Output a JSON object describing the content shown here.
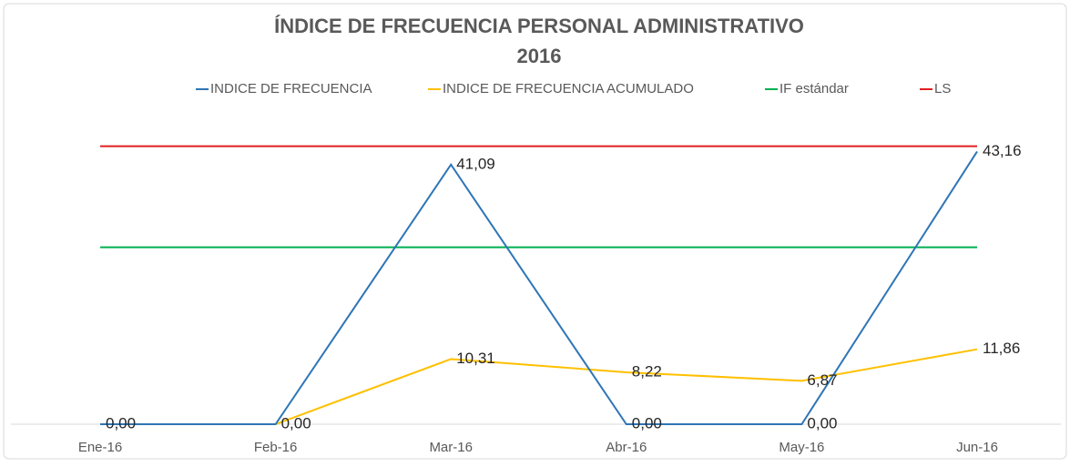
{
  "chart_data": {
    "type": "line",
    "title": [
      "ÍNDICE DE FRECUENCIA PERSONAL ADMINISTRATIVO",
      "2016"
    ],
    "categories": [
      "Ene-16",
      "Feb-16",
      "Mar-16",
      "Abr-16",
      "May-16",
      "Jun-16"
    ],
    "series": [
      {
        "name": "INDICE DE FRECUENCIA",
        "color": "#2e75b6",
        "values": [
          0,
          0,
          41.09,
          0,
          0,
          43.16
        ],
        "value_labels": [
          null,
          null,
          "41,09",
          "0,00",
          "0,00",
          "43,16"
        ]
      },
      {
        "name": "INDICE DE FRECUENCIA ACUMULADO",
        "color": "#ffc000",
        "values": [
          0,
          0,
          10.31,
          8.22,
          6.87,
          11.86
        ],
        "value_labels": [
          "0,00",
          "0,00",
          "10,31",
          "8,22",
          "6,87",
          "11,86"
        ]
      },
      {
        "name": "IF estándar",
        "color": "#00b050",
        "values": [
          28,
          28,
          28,
          28,
          28,
          28
        ]
      },
      {
        "name": "LS",
        "color": "#e02020",
        "values": [
          44,
          44,
          44,
          44,
          44,
          44
        ]
      }
    ],
    "ylim": [
      0,
      50
    ],
    "legend": "top"
  }
}
